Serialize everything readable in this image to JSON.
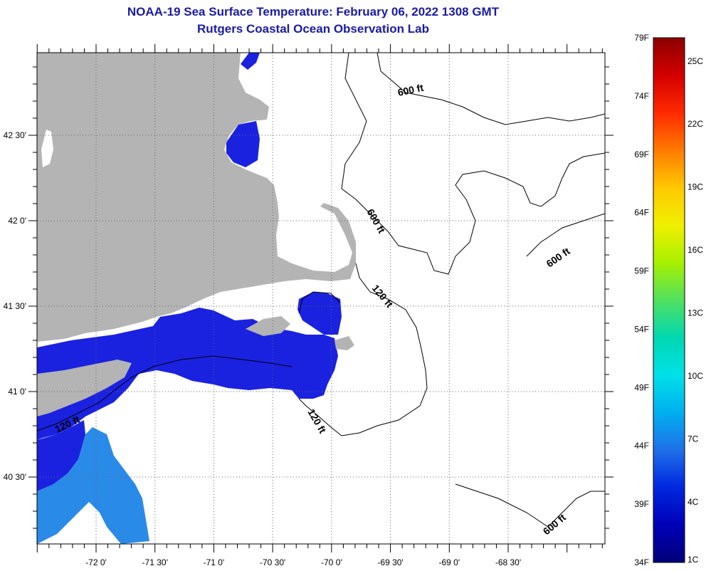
{
  "title_line1": "NOAA-19 Sea Surface Temperature:  February 06, 2022 1308 GMT",
  "title_line2": "Rutgers Coastal Ocean Observation Lab",
  "x_ticks": [
    {
      "label": "-72 0'",
      "lon": -72.0
    },
    {
      "label": "-71 30'",
      "lon": -71.5
    },
    {
      "label": "-71 0'",
      "lon": -71.0
    },
    {
      "label": "-70 30'",
      "lon": -70.5
    },
    {
      "label": "-70 0'",
      "lon": -70.0
    },
    {
      "label": "-69 30'",
      "lon": -69.5
    },
    {
      "label": "-69 0'",
      "lon": -69.0
    },
    {
      "label": "-68 30'",
      "lon": -68.5
    }
  ],
  "y_ticks": [
    {
      "label": "42 30'",
      "lat": 42.5
    },
    {
      "label": "42 0'",
      "lat": 42.0
    },
    {
      "label": "41 30'",
      "lat": 41.5
    },
    {
      "label": "41 0'",
      "lat": 41.0
    },
    {
      "label": "40 30'",
      "lat": 40.5
    }
  ],
  "contour_labels": [
    "600 ft",
    "600 ft",
    "600 ft",
    "600 ft",
    "120 ft",
    "120 ft",
    "120 ft"
  ],
  "colorbar": {
    "fahrenheit": [
      "79F",
      "74F",
      "69F",
      "64F",
      "59F",
      "54F",
      "49F",
      "44F",
      "39F",
      "34F"
    ],
    "celsius": [
      "25C",
      "22C",
      "19C",
      "16C",
      "13C",
      "10C",
      "7C",
      "4C",
      "1C"
    ],
    "colors": [
      "#8b0000",
      "#d40000",
      "#ff2a00",
      "#ff7a00",
      "#ffc800",
      "#f0f000",
      "#a8f000",
      "#50e060",
      "#00d8b0",
      "#00e0e8",
      "#00b0f0",
      "#2070e8",
      "#0028e0",
      "#0000b8",
      "#00007a"
    ]
  },
  "colors": {
    "land": "#b4b4b4",
    "water_blue": "#1a22e0",
    "water_light_blue": "#2a8ae8",
    "title": "#1a1aa8"
  }
}
